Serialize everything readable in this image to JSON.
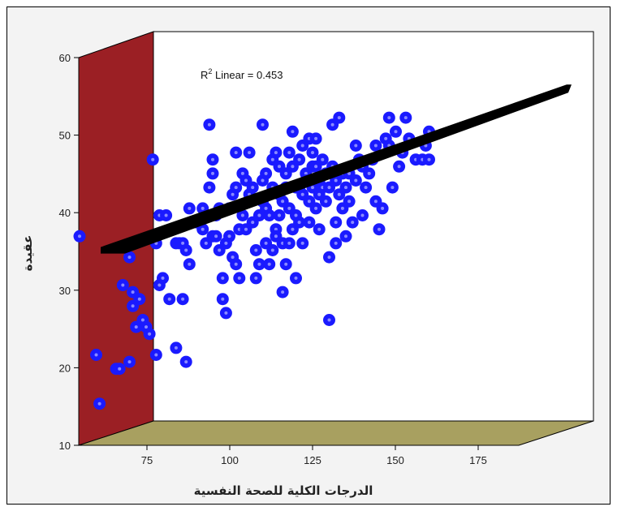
{
  "chart_data": {
    "type": "scatter",
    "view": "3d-box",
    "title": "",
    "xlabel": "الدرجات الكلية للصحة النفسية",
    "ylabel": "عقيدة",
    "xlim": [
      75,
      185
    ],
    "ylim": [
      10,
      60
    ],
    "xticks": [
      "75",
      "100",
      "125",
      "150",
      "175"
    ],
    "yticks": [
      "10",
      "20",
      "30",
      "40",
      "50",
      "60"
    ],
    "annotation": {
      "prefix": "R",
      "sup": "2",
      "text": " Linear = 0.453"
    },
    "fit_line": {
      "x": [
        75,
        185
      ],
      "y": [
        26.5,
        57
      ]
    },
    "colors": {
      "points": "#1a1aff",
      "point_core": "#8a8aff",
      "fit_line": "#000000",
      "side_wall": "#9b1f24",
      "floor": "#a8a060",
      "back_wall": "#ffffff",
      "frame_bg": "#f3f3f3"
    },
    "points": [
      [
        75,
        37
      ],
      [
        80,
        20
      ],
      [
        81,
        13
      ],
      [
        86,
        18
      ],
      [
        87,
        18
      ],
      [
        88,
        30
      ],
      [
        90,
        19
      ],
      [
        90,
        34
      ],
      [
        91,
        27
      ],
      [
        91,
        29
      ],
      [
        92,
        24
      ],
      [
        93,
        28
      ],
      [
        94,
        25
      ],
      [
        95,
        24
      ],
      [
        96,
        23
      ],
      [
        97,
        48
      ],
      [
        98,
        20
      ],
      [
        98,
        36
      ],
      [
        99,
        40
      ],
      [
        99,
        30
      ],
      [
        100,
        31
      ],
      [
        101,
        40
      ],
      [
        102,
        28
      ],
      [
        104,
        21
      ],
      [
        104,
        36
      ],
      [
        105,
        36
      ],
      [
        106,
        28
      ],
      [
        106,
        36
      ],
      [
        107,
        35
      ],
      [
        107,
        19
      ],
      [
        108,
        33
      ],
      [
        108,
        41
      ],
      [
        110,
        39
      ],
      [
        111,
        39
      ],
      [
        112,
        41
      ],
      [
        112,
        38
      ],
      [
        113,
        36
      ],
      [
        114,
        53
      ],
      [
        114,
        44
      ],
      [
        115,
        37
      ],
      [
        115,
        46
      ],
      [
        115,
        48
      ],
      [
        116,
        37
      ],
      [
        116,
        40
      ],
      [
        117,
        35
      ],
      [
        117,
        41
      ],
      [
        118,
        31
      ],
      [
        118,
        28
      ],
      [
        119,
        26
      ],
      [
        119,
        36
      ],
      [
        120,
        37
      ],
      [
        120,
        41
      ],
      [
        121,
        34
      ],
      [
        121,
        43
      ],
      [
        122,
        49
      ],
      [
        122,
        44
      ],
      [
        122,
        33
      ],
      [
        123,
        38
      ],
      [
        123,
        31
      ],
      [
        124,
        40
      ],
      [
        124,
        46
      ],
      [
        125,
        45
      ],
      [
        125,
        38
      ],
      [
        126,
        49
      ],
      [
        126,
        43
      ],
      [
        127,
        44
      ],
      [
        127,
        39
      ],
      [
        128,
        35
      ],
      [
        128,
        31
      ],
      [
        129,
        40
      ],
      [
        129,
        33
      ],
      [
        130,
        45
      ],
      [
        130,
        42
      ],
      [
        130,
        53
      ],
      [
        131,
        46
      ],
      [
        131,
        41
      ],
      [
        131,
        36
      ],
      [
        132,
        40
      ],
      [
        132,
        33
      ],
      [
        133,
        35
      ],
      [
        133,
        44
      ],
      [
        133,
        48
      ],
      [
        134,
        49
      ],
      [
        134,
        38
      ],
      [
        134,
        37
      ],
      [
        135,
        47
      ],
      [
        135,
        43
      ],
      [
        135,
        40
      ],
      [
        136,
        42
      ],
      [
        136,
        36
      ],
      [
        136,
        29
      ],
      [
        137,
        46
      ],
      [
        137,
        44
      ],
      [
        137,
        33
      ],
      [
        138,
        49
      ],
      [
        138,
        41
      ],
      [
        138,
        36
      ],
      [
        139,
        52
      ],
      [
        139,
        47
      ],
      [
        139,
        38
      ],
      [
        140,
        44
      ],
      [
        140,
        40
      ],
      [
        140,
        31
      ],
      [
        141,
        48
      ],
      [
        141,
        44
      ],
      [
        141,
        39
      ],
      [
        142,
        43
      ],
      [
        142,
        36
      ],
      [
        142,
        50
      ],
      [
        143,
        46
      ],
      [
        143,
        45
      ],
      [
        144,
        51
      ],
      [
        144,
        42
      ],
      [
        144,
        39
      ],
      [
        145,
        49
      ],
      [
        145,
        47
      ],
      [
        145,
        44
      ],
      [
        146,
        47
      ],
      [
        146,
        41
      ],
      [
        146,
        51
      ],
      [
        147,
        45
      ],
      [
        147,
        43
      ],
      [
        147,
        38
      ],
      [
        148,
        48
      ],
      [
        148,
        44
      ],
      [
        149,
        46
      ],
      [
        149,
        42
      ],
      [
        150,
        44
      ],
      [
        150,
        34
      ],
      [
        150,
        25
      ],
      [
        151,
        47
      ],
      [
        151,
        53
      ],
      [
        152,
        45
      ],
      [
        152,
        39
      ],
      [
        152,
        36
      ],
      [
        153,
        54
      ],
      [
        153,
        43
      ],
      [
        154,
        46
      ],
      [
        154,
        41
      ],
      [
        155,
        44
      ],
      [
        155,
        37
      ],
      [
        156,
        46
      ],
      [
        156,
        42
      ],
      [
        157,
        39
      ],
      [
        158,
        50
      ],
      [
        158,
        45
      ],
      [
        159,
        48
      ],
      [
        160,
        40
      ],
      [
        160,
        47
      ],
      [
        161,
        44
      ],
      [
        162,
        46
      ],
      [
        163,
        48
      ],
      [
        164,
        50
      ],
      [
        164,
        42
      ],
      [
        165,
        38
      ],
      [
        166,
        41
      ],
      [
        167,
        51
      ],
      [
        168,
        54
      ],
      [
        168,
        50
      ],
      [
        169,
        44
      ],
      [
        170,
        52
      ],
      [
        171,
        47
      ],
      [
        172,
        49
      ],
      [
        173,
        54
      ],
      [
        174,
        51
      ],
      [
        176,
        48
      ],
      [
        178,
        48
      ],
      [
        179,
        50
      ],
      [
        180,
        52
      ],
      [
        180,
        48
      ]
    ]
  }
}
